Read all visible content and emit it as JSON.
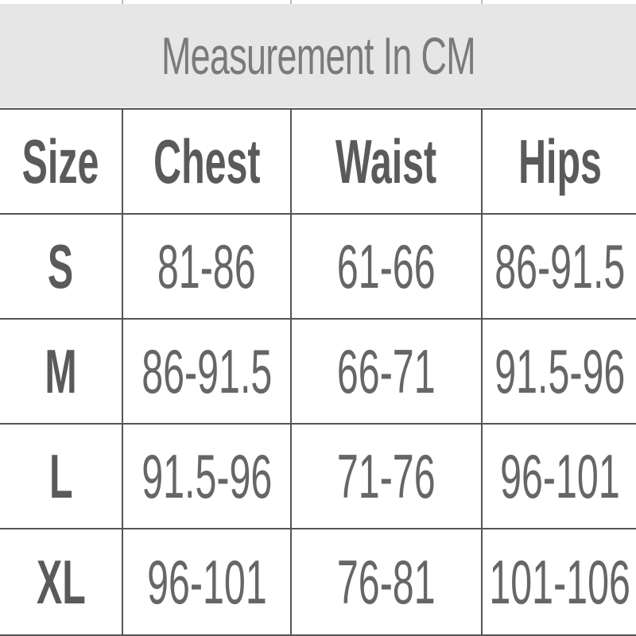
{
  "title": "Measurement In CM",
  "table": {
    "header": [
      "Size",
      "Chest",
      "Waist",
      "Hips"
    ],
    "rows": [
      [
        "S",
        "81-86",
        "61-66",
        "86-91.5"
      ],
      [
        "M",
        "86-91.5",
        "66-71",
        "91.5-96"
      ],
      [
        "L",
        "91.5-96",
        "71-76",
        "96-101"
      ],
      [
        "XL",
        "96-101",
        "76-81",
        "101-106"
      ]
    ]
  }
}
